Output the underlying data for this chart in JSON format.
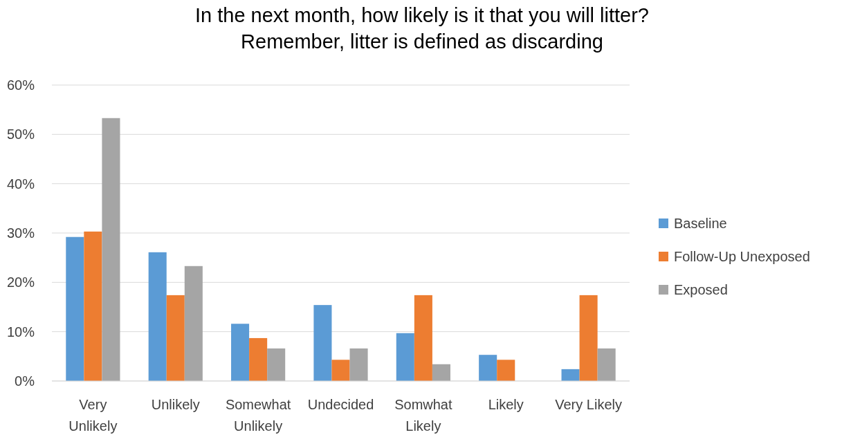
{
  "chart_data": {
    "type": "bar",
    "title": "In the next month, how likely is it that you will litter?\nRemember, litter is defined as discarding",
    "categories": [
      "Very Unlikely",
      "Unlikely",
      "Somewhat Unlikely",
      "Undecided",
      "Somwhat Likely",
      "Likely",
      "Very Likely"
    ],
    "series": [
      {
        "name": "Baseline",
        "color": "#5b9bd5",
        "values": [
          29.2,
          26.1,
          11.6,
          15.4,
          9.7,
          5.3,
          2.4
        ]
      },
      {
        "name": "Follow-Up Unexposed",
        "color": "#ed7d31",
        "values": [
          30.3,
          17.4,
          8.7,
          4.3,
          17.4,
          4.3,
          17.4
        ]
      },
      {
        "name": "Exposed",
        "color": "#a5a5a5",
        "values": [
          53.3,
          23.3,
          6.6,
          6.6,
          3.4,
          0,
          6.6
        ]
      }
    ],
    "ylim": [
      0,
      60
    ],
    "yticks": [
      {
        "value": 0,
        "label": "0%"
      },
      {
        "value": 10,
        "label": "10%"
      },
      {
        "value": 20,
        "label": "20%"
      },
      {
        "value": 30,
        "label": "30%"
      },
      {
        "value": 40,
        "label": "40%"
      },
      {
        "value": 50,
        "label": "50%"
      },
      {
        "value": 60,
        "label": "60%"
      }
    ],
    "grid": "y",
    "legend": "right"
  }
}
